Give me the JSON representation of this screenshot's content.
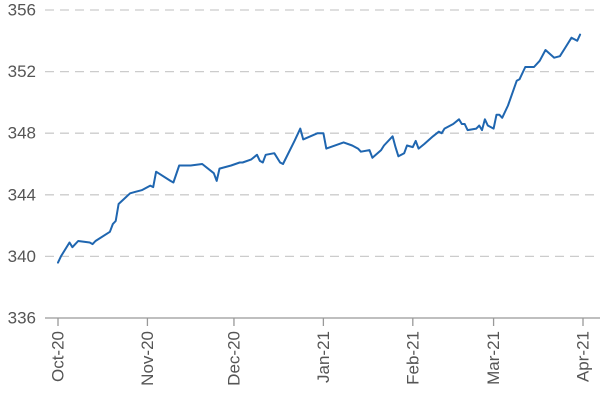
{
  "chart_data": {
    "type": "line",
    "title": "",
    "xlabel": "",
    "ylabel": "",
    "ylim": [
      336,
      356
    ],
    "y_ticks": [
      "336",
      "340",
      "344",
      "348",
      "352",
      "356"
    ],
    "x_ticks": [
      {
        "label": "Oct-20",
        "date": "2020-10-01"
      },
      {
        "label": "Nov-20",
        "date": "2020-11-01"
      },
      {
        "label": "Dec-20",
        "date": "2020-12-01"
      },
      {
        "label": "Jan-21",
        "date": "2021-01-01"
      },
      {
        "label": "Feb-21",
        "date": "2021-02-01"
      },
      {
        "label": "Mar-21",
        "date": "2021-03-01"
      },
      {
        "label": "Apr-21",
        "date": "2021-04-01"
      }
    ],
    "grid": true,
    "legend": "none",
    "series": [
      {
        "color": "#1f66b0",
        "points": [
          [
            "2020-10-01",
            339.6
          ],
          [
            "2020-10-02",
            340.0
          ],
          [
            "2020-10-05",
            340.9
          ],
          [
            "2020-10-06",
            340.6
          ],
          [
            "2020-10-07",
            340.8
          ],
          [
            "2020-10-08",
            341.0
          ],
          [
            "2020-10-12",
            340.9
          ],
          [
            "2020-10-13",
            340.8
          ],
          [
            "2020-10-14",
            341.0
          ],
          [
            "2020-10-19",
            341.6
          ],
          [
            "2020-10-20",
            342.1
          ],
          [
            "2020-10-21",
            342.3
          ],
          [
            "2020-10-22",
            343.4
          ],
          [
            "2020-10-26",
            344.1
          ],
          [
            "2020-10-28",
            344.2
          ],
          [
            "2020-10-30",
            344.3
          ],
          [
            "2020-11-02",
            344.6
          ],
          [
            "2020-11-03",
            344.5
          ],
          [
            "2020-11-04",
            345.5
          ],
          [
            "2020-11-09",
            344.9
          ],
          [
            "2020-11-10",
            344.8
          ],
          [
            "2020-11-12",
            345.9
          ],
          [
            "2020-11-16",
            345.9
          ],
          [
            "2020-11-20",
            346.0
          ],
          [
            "2020-11-24",
            345.4
          ],
          [
            "2020-11-25",
            344.9
          ],
          [
            "2020-11-26",
            345.7
          ],
          [
            "2020-11-30",
            345.9
          ],
          [
            "2020-12-03",
            346.1
          ],
          [
            "2020-12-04",
            346.1
          ],
          [
            "2020-12-07",
            346.3
          ],
          [
            "2020-12-09",
            346.6
          ],
          [
            "2020-12-10",
            346.2
          ],
          [
            "2020-12-11",
            346.1
          ],
          [
            "2020-12-12",
            346.6
          ],
          [
            "2020-12-15",
            346.7
          ],
          [
            "2020-12-17",
            346.1
          ],
          [
            "2020-12-18",
            346.0
          ],
          [
            "2020-12-22",
            347.5
          ],
          [
            "2020-12-24",
            348.3
          ],
          [
            "2020-12-25",
            347.6
          ],
          [
            "2020-12-30",
            348.0
          ],
          [
            "2021-01-01",
            348.0
          ],
          [
            "2021-01-02",
            347.0
          ],
          [
            "2021-01-08",
            347.4
          ],
          [
            "2021-01-11",
            347.2
          ],
          [
            "2021-01-13",
            347.0
          ],
          [
            "2021-01-14",
            346.8
          ],
          [
            "2021-01-17",
            346.9
          ],
          [
            "2021-01-18",
            346.4
          ],
          [
            "2021-01-21",
            346.9
          ],
          [
            "2021-01-22",
            347.2
          ],
          [
            "2021-01-25",
            347.8
          ],
          [
            "2021-01-26",
            347.1
          ],
          [
            "2021-01-27",
            346.5
          ],
          [
            "2021-01-29",
            346.7
          ],
          [
            "2021-01-30",
            347.2
          ],
          [
            "2021-02-01",
            347.1
          ],
          [
            "2021-02-02",
            347.5
          ],
          [
            "2021-02-03",
            347.0
          ],
          [
            "2021-02-05",
            347.3
          ],
          [
            "2021-02-08",
            347.8
          ],
          [
            "2021-02-10",
            348.1
          ],
          [
            "2021-02-11",
            348.0
          ],
          [
            "2021-02-12",
            348.3
          ],
          [
            "2021-02-15",
            348.6
          ],
          [
            "2021-02-17",
            348.9
          ],
          [
            "2021-02-18",
            348.6
          ],
          [
            "2021-02-19",
            348.6
          ],
          [
            "2021-02-20",
            348.2
          ],
          [
            "2021-02-23",
            348.3
          ],
          [
            "2021-02-24",
            348.5
          ],
          [
            "2021-02-25",
            348.2
          ],
          [
            "2021-02-26",
            348.9
          ],
          [
            "2021-02-27",
            348.5
          ],
          [
            "2021-03-01",
            348.3
          ],
          [
            "2021-03-02",
            349.2
          ],
          [
            "2021-03-03",
            349.2
          ],
          [
            "2021-03-04",
            349.0
          ],
          [
            "2021-03-06",
            349.8
          ],
          [
            "2021-03-09",
            351.4
          ],
          [
            "2021-03-10",
            351.5
          ],
          [
            "2021-03-12",
            352.3
          ],
          [
            "2021-03-15",
            352.3
          ],
          [
            "2021-03-17",
            352.7
          ],
          [
            "2021-03-19",
            353.4
          ],
          [
            "2021-03-22",
            352.9
          ],
          [
            "2021-03-24",
            353.0
          ],
          [
            "2021-03-26",
            353.6
          ],
          [
            "2021-03-28",
            354.2
          ],
          [
            "2021-03-30",
            354.0
          ],
          [
            "2021-03-31",
            354.4
          ]
        ]
      }
    ]
  }
}
